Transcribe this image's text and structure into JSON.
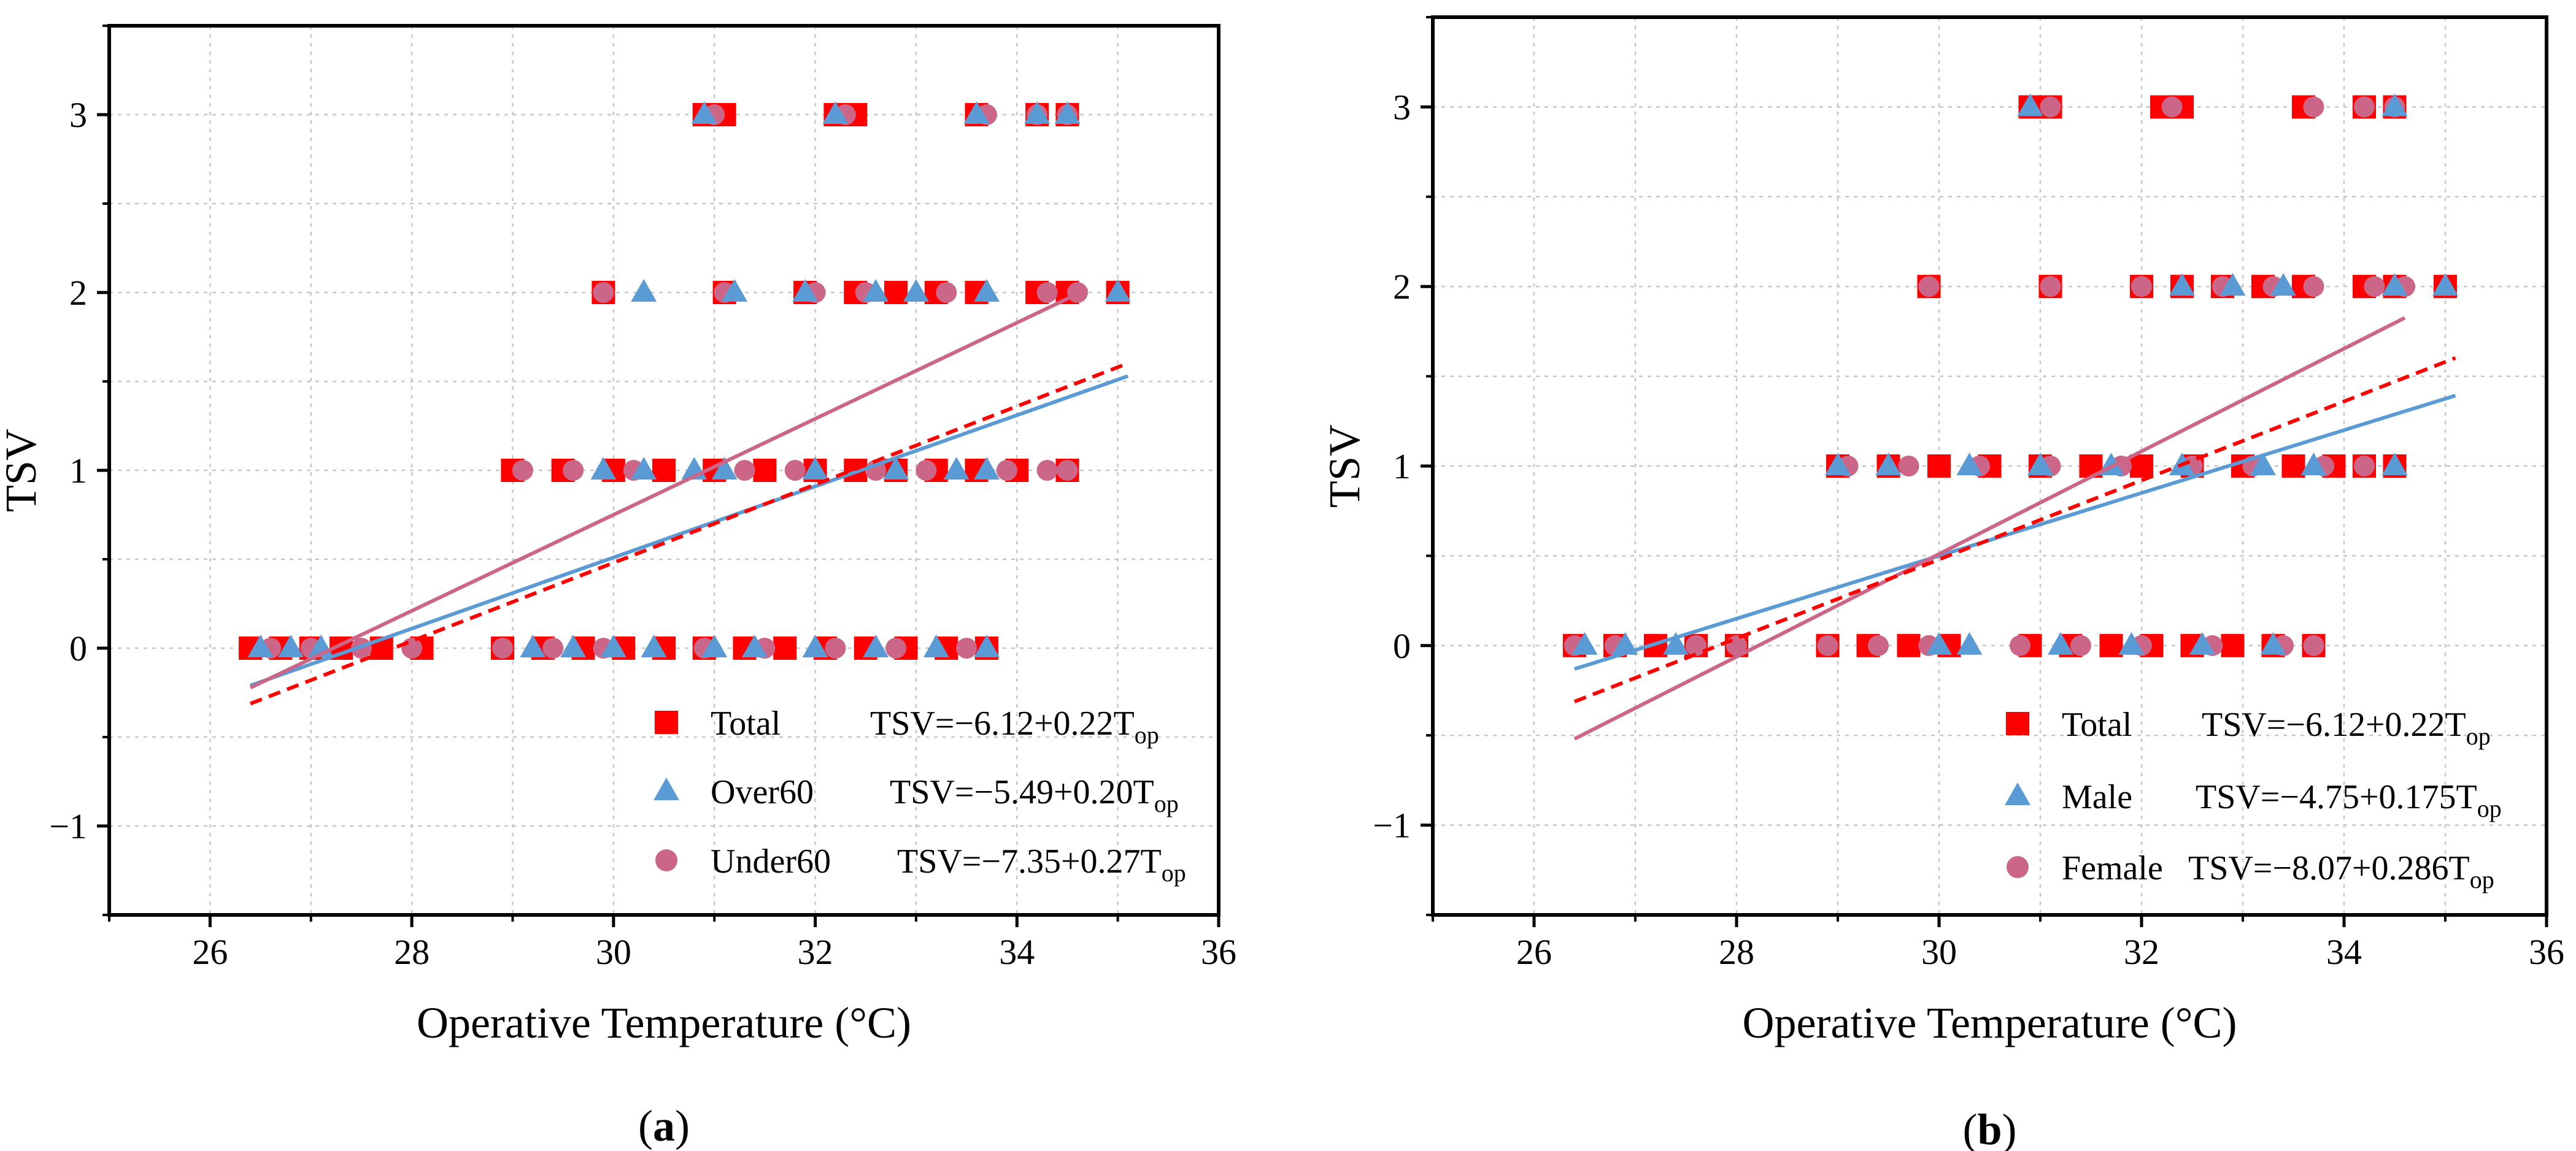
{
  "colors": {
    "total": "#ff0000",
    "group1": "#5b9bd5",
    "group2": "#cc6688",
    "grid": "#c8c8c8",
    "axis": "#000000"
  },
  "chart_data": [
    {
      "type": "scatter",
      "panel_label": "(a)",
      "panel_letter": "a",
      "xlabel": "Operative Temperature (°C)",
      "ylabel": "TSV",
      "xlim": [
        25,
        36
      ],
      "ylim": [
        -1.5,
        3.5
      ],
      "xticks": [
        26,
        28,
        30,
        32,
        34,
        36
      ],
      "yticks": [
        -1,
        0,
        1,
        2,
        3
      ],
      "grid": true,
      "legend_position": "bottom-right",
      "series": [
        {
          "name": "Total",
          "marker": "square",
          "color": "#ff0000",
          "equation": "TSV=−6.12+0.22T",
          "equation_sub": "op",
          "intercept": -6.12,
          "slope": 0.22,
          "fit_range": [
            26.4,
            35.1
          ],
          "line_style": "dashed",
          "points": [
            [
              26.4,
              0
            ],
            [
              26.7,
              0
            ],
            [
              27.0,
              0
            ],
            [
              27.3,
              0
            ],
            [
              27.7,
              0
            ],
            [
              28.1,
              0
            ],
            [
              28.9,
              0
            ],
            [
              29.3,
              0
            ],
            [
              29.7,
              0
            ],
            [
              30.1,
              0
            ],
            [
              30.5,
              0
            ],
            [
              30.9,
              0
            ],
            [
              31.3,
              0
            ],
            [
              31.7,
              0
            ],
            [
              32.1,
              0
            ],
            [
              32.5,
              0
            ],
            [
              32.9,
              0
            ],
            [
              33.3,
              0
            ],
            [
              33.7,
              0
            ],
            [
              29.0,
              1
            ],
            [
              29.5,
              1
            ],
            [
              30.0,
              1
            ],
            [
              30.5,
              1
            ],
            [
              31.0,
              1
            ],
            [
              31.5,
              1
            ],
            [
              32.0,
              1
            ],
            [
              32.4,
              1
            ],
            [
              32.8,
              1
            ],
            [
              33.2,
              1
            ],
            [
              33.6,
              1
            ],
            [
              34.0,
              1
            ],
            [
              34.5,
              1
            ],
            [
              29.9,
              2
            ],
            [
              31.1,
              2
            ],
            [
              31.9,
              2
            ],
            [
              32.4,
              2
            ],
            [
              32.8,
              2
            ],
            [
              33.2,
              2
            ],
            [
              33.6,
              2
            ],
            [
              34.2,
              2
            ],
            [
              34.5,
              2
            ],
            [
              35.0,
              2
            ],
            [
              30.9,
              3
            ],
            [
              31.1,
              3
            ],
            [
              32.2,
              3
            ],
            [
              32.4,
              3
            ],
            [
              33.6,
              3
            ],
            [
              34.2,
              3
            ],
            [
              34.5,
              3
            ]
          ]
        },
        {
          "name": "Over60",
          "marker": "triangle",
          "color": "#5b9bd5",
          "equation": "TSV=−5.49+0.20T",
          "equation_sub": "op",
          "intercept": -5.49,
          "slope": 0.2,
          "fit_range": [
            26.4,
            35.1
          ],
          "line_style": "solid",
          "points": [
            [
              26.5,
              0
            ],
            [
              26.8,
              0
            ],
            [
              27.1,
              0
            ],
            [
              29.2,
              0
            ],
            [
              29.6,
              0
            ],
            [
              30.0,
              0
            ],
            [
              30.4,
              0
            ],
            [
              31.0,
              0
            ],
            [
              31.4,
              0
            ],
            [
              32.0,
              0
            ],
            [
              32.6,
              0
            ],
            [
              33.2,
              0
            ],
            [
              33.7,
              0
            ],
            [
              29.9,
              1
            ],
            [
              30.3,
              1
            ],
            [
              30.8,
              1
            ],
            [
              31.1,
              1
            ],
            [
              32.0,
              1
            ],
            [
              32.8,
              1
            ],
            [
              33.4,
              1
            ],
            [
              33.7,
              1
            ],
            [
              30.3,
              2
            ],
            [
              31.2,
              2
            ],
            [
              31.9,
              2
            ],
            [
              32.6,
              2
            ],
            [
              33.0,
              2
            ],
            [
              33.7,
              2
            ],
            [
              35.0,
              2
            ],
            [
              30.9,
              3
            ],
            [
              32.2,
              3
            ],
            [
              33.6,
              3
            ],
            [
              34.2,
              3
            ],
            [
              34.5,
              3
            ]
          ]
        },
        {
          "name": "Under60",
          "marker": "circle",
          "color": "#cc6688",
          "equation": "TSV=−7.35+0.27T",
          "equation_sub": "op",
          "intercept": -7.35,
          "slope": 0.27,
          "fit_range": [
            26.4,
            34.7
          ],
          "line_style": "solid",
          "points": [
            [
              26.6,
              0
            ],
            [
              27.0,
              0
            ],
            [
              27.5,
              0
            ],
            [
              28.0,
              0
            ],
            [
              28.9,
              0
            ],
            [
              29.4,
              0
            ],
            [
              29.9,
              0
            ],
            [
              30.9,
              0
            ],
            [
              31.5,
              0
            ],
            [
              32.2,
              0
            ],
            [
              32.8,
              0
            ],
            [
              33.5,
              0
            ],
            [
              29.1,
              1
            ],
            [
              29.6,
              1
            ],
            [
              30.2,
              1
            ],
            [
              31.3,
              1
            ],
            [
              31.8,
              1
            ],
            [
              32.6,
              1
            ],
            [
              33.1,
              1
            ],
            [
              33.9,
              1
            ],
            [
              34.3,
              1
            ],
            [
              34.5,
              1
            ],
            [
              29.9,
              2
            ],
            [
              31.1,
              2
            ],
            [
              32.0,
              2
            ],
            [
              32.5,
              2
            ],
            [
              33.3,
              2
            ],
            [
              34.3,
              2
            ],
            [
              34.6,
              2
            ],
            [
              31.0,
              3
            ],
            [
              32.3,
              3
            ],
            [
              33.7,
              3
            ],
            [
              34.2,
              3
            ],
            [
              34.5,
              3
            ]
          ]
        }
      ]
    },
    {
      "type": "scatter",
      "panel_label": "(b)",
      "panel_letter": "b",
      "xlabel": "Operative Temperature (°C)",
      "ylabel": "TSV",
      "xlim": [
        25,
        36
      ],
      "ylim": [
        -1.5,
        3.5
      ],
      "xticks": [
        26,
        28,
        30,
        32,
        34,
        36
      ],
      "yticks": [
        -1,
        0,
        1,
        2,
        3
      ],
      "grid": true,
      "legend_position": "bottom-right",
      "series": [
        {
          "name": "Total",
          "marker": "square",
          "color": "#ff0000",
          "equation": "TSV=−6.12+0.22T",
          "equation_sub": "op",
          "intercept": -6.12,
          "slope": 0.22,
          "fit_range": [
            26.4,
            35.1
          ],
          "line_style": "dashed",
          "points": [
            [
              26.4,
              0
            ],
            [
              26.8,
              0
            ],
            [
              27.2,
              0
            ],
            [
              27.6,
              0
            ],
            [
              28.0,
              0
            ],
            [
              28.9,
              0
            ],
            [
              29.3,
              0
            ],
            [
              29.7,
              0
            ],
            [
              30.1,
              0
            ],
            [
              30.9,
              0
            ],
            [
              31.3,
              0
            ],
            [
              31.7,
              0
            ],
            [
              32.1,
              0
            ],
            [
              32.5,
              0
            ],
            [
              32.9,
              0
            ],
            [
              33.3,
              0
            ],
            [
              33.7,
              0
            ],
            [
              29.0,
              1
            ],
            [
              29.5,
              1
            ],
            [
              30.0,
              1
            ],
            [
              30.5,
              1
            ],
            [
              31.0,
              1
            ],
            [
              31.5,
              1
            ],
            [
              32.0,
              1
            ],
            [
              32.5,
              1
            ],
            [
              33.0,
              1
            ],
            [
              33.5,
              1
            ],
            [
              33.9,
              1
            ],
            [
              34.2,
              1
            ],
            [
              34.5,
              1
            ],
            [
              29.9,
              2
            ],
            [
              31.1,
              2
            ],
            [
              32.0,
              2
            ],
            [
              32.4,
              2
            ],
            [
              32.8,
              2
            ],
            [
              33.2,
              2
            ],
            [
              33.6,
              2
            ],
            [
              34.2,
              2
            ],
            [
              34.5,
              2
            ],
            [
              35.0,
              2
            ],
            [
              30.9,
              3
            ],
            [
              31.1,
              3
            ],
            [
              32.2,
              3
            ],
            [
              32.4,
              3
            ],
            [
              33.6,
              3
            ],
            [
              34.2,
              3
            ],
            [
              34.5,
              3
            ]
          ]
        },
        {
          "name": "Male",
          "marker": "triangle",
          "color": "#5b9bd5",
          "equation": "TSV=−4.75+0.175T",
          "equation_sub": "op",
          "intercept": -4.75,
          "slope": 0.175,
          "fit_range": [
            26.4,
            35.1
          ],
          "line_style": "solid",
          "points": [
            [
              26.5,
              0
            ],
            [
              26.9,
              0
            ],
            [
              27.4,
              0
            ],
            [
              30.0,
              0
            ],
            [
              30.3,
              0
            ],
            [
              31.2,
              0
            ],
            [
              31.9,
              0
            ],
            [
              32.6,
              0
            ],
            [
              33.3,
              0
            ],
            [
              29.0,
              1
            ],
            [
              29.5,
              1
            ],
            [
              30.3,
              1
            ],
            [
              31.0,
              1
            ],
            [
              31.7,
              1
            ],
            [
              32.4,
              1
            ],
            [
              33.2,
              1
            ],
            [
              33.7,
              1
            ],
            [
              34.5,
              1
            ],
            [
              32.4,
              2
            ],
            [
              32.9,
              2
            ],
            [
              33.4,
              2
            ],
            [
              34.5,
              2
            ],
            [
              35.0,
              2
            ],
            [
              30.9,
              3
            ],
            [
              34.5,
              3
            ]
          ]
        },
        {
          "name": "Female",
          "marker": "circle",
          "color": "#cc6688",
          "equation": "TSV=−8.07+0.286T",
          "equation_sub": "op",
          "intercept": -8.07,
          "slope": 0.286,
          "fit_range": [
            26.4,
            34.6
          ],
          "line_style": "solid",
          "points": [
            [
              26.4,
              0
            ],
            [
              26.8,
              0
            ],
            [
              27.6,
              0
            ],
            [
              28.0,
              0
            ],
            [
              28.9,
              0
            ],
            [
              29.4,
              0
            ],
            [
              29.9,
              0
            ],
            [
              30.8,
              0
            ],
            [
              31.4,
              0
            ],
            [
              32.0,
              0
            ],
            [
              32.7,
              0
            ],
            [
              33.4,
              0
            ],
            [
              33.7,
              0
            ],
            [
              29.1,
              1
            ],
            [
              29.7,
              1
            ],
            [
              30.4,
              1
            ],
            [
              31.1,
              1
            ],
            [
              31.8,
              1
            ],
            [
              32.5,
              1
            ],
            [
              33.1,
              1
            ],
            [
              33.8,
              1
            ],
            [
              34.2,
              1
            ],
            [
              29.9,
              2
            ],
            [
              31.1,
              2
            ],
            [
              32.0,
              2
            ],
            [
              32.8,
              2
            ],
            [
              33.3,
              2
            ],
            [
              33.7,
              2
            ],
            [
              34.3,
              2
            ],
            [
              34.6,
              2
            ],
            [
              31.1,
              3
            ],
            [
              32.3,
              3
            ],
            [
              33.7,
              3
            ],
            [
              34.2,
              3
            ],
            [
              34.5,
              3
            ]
          ]
        }
      ]
    }
  ]
}
